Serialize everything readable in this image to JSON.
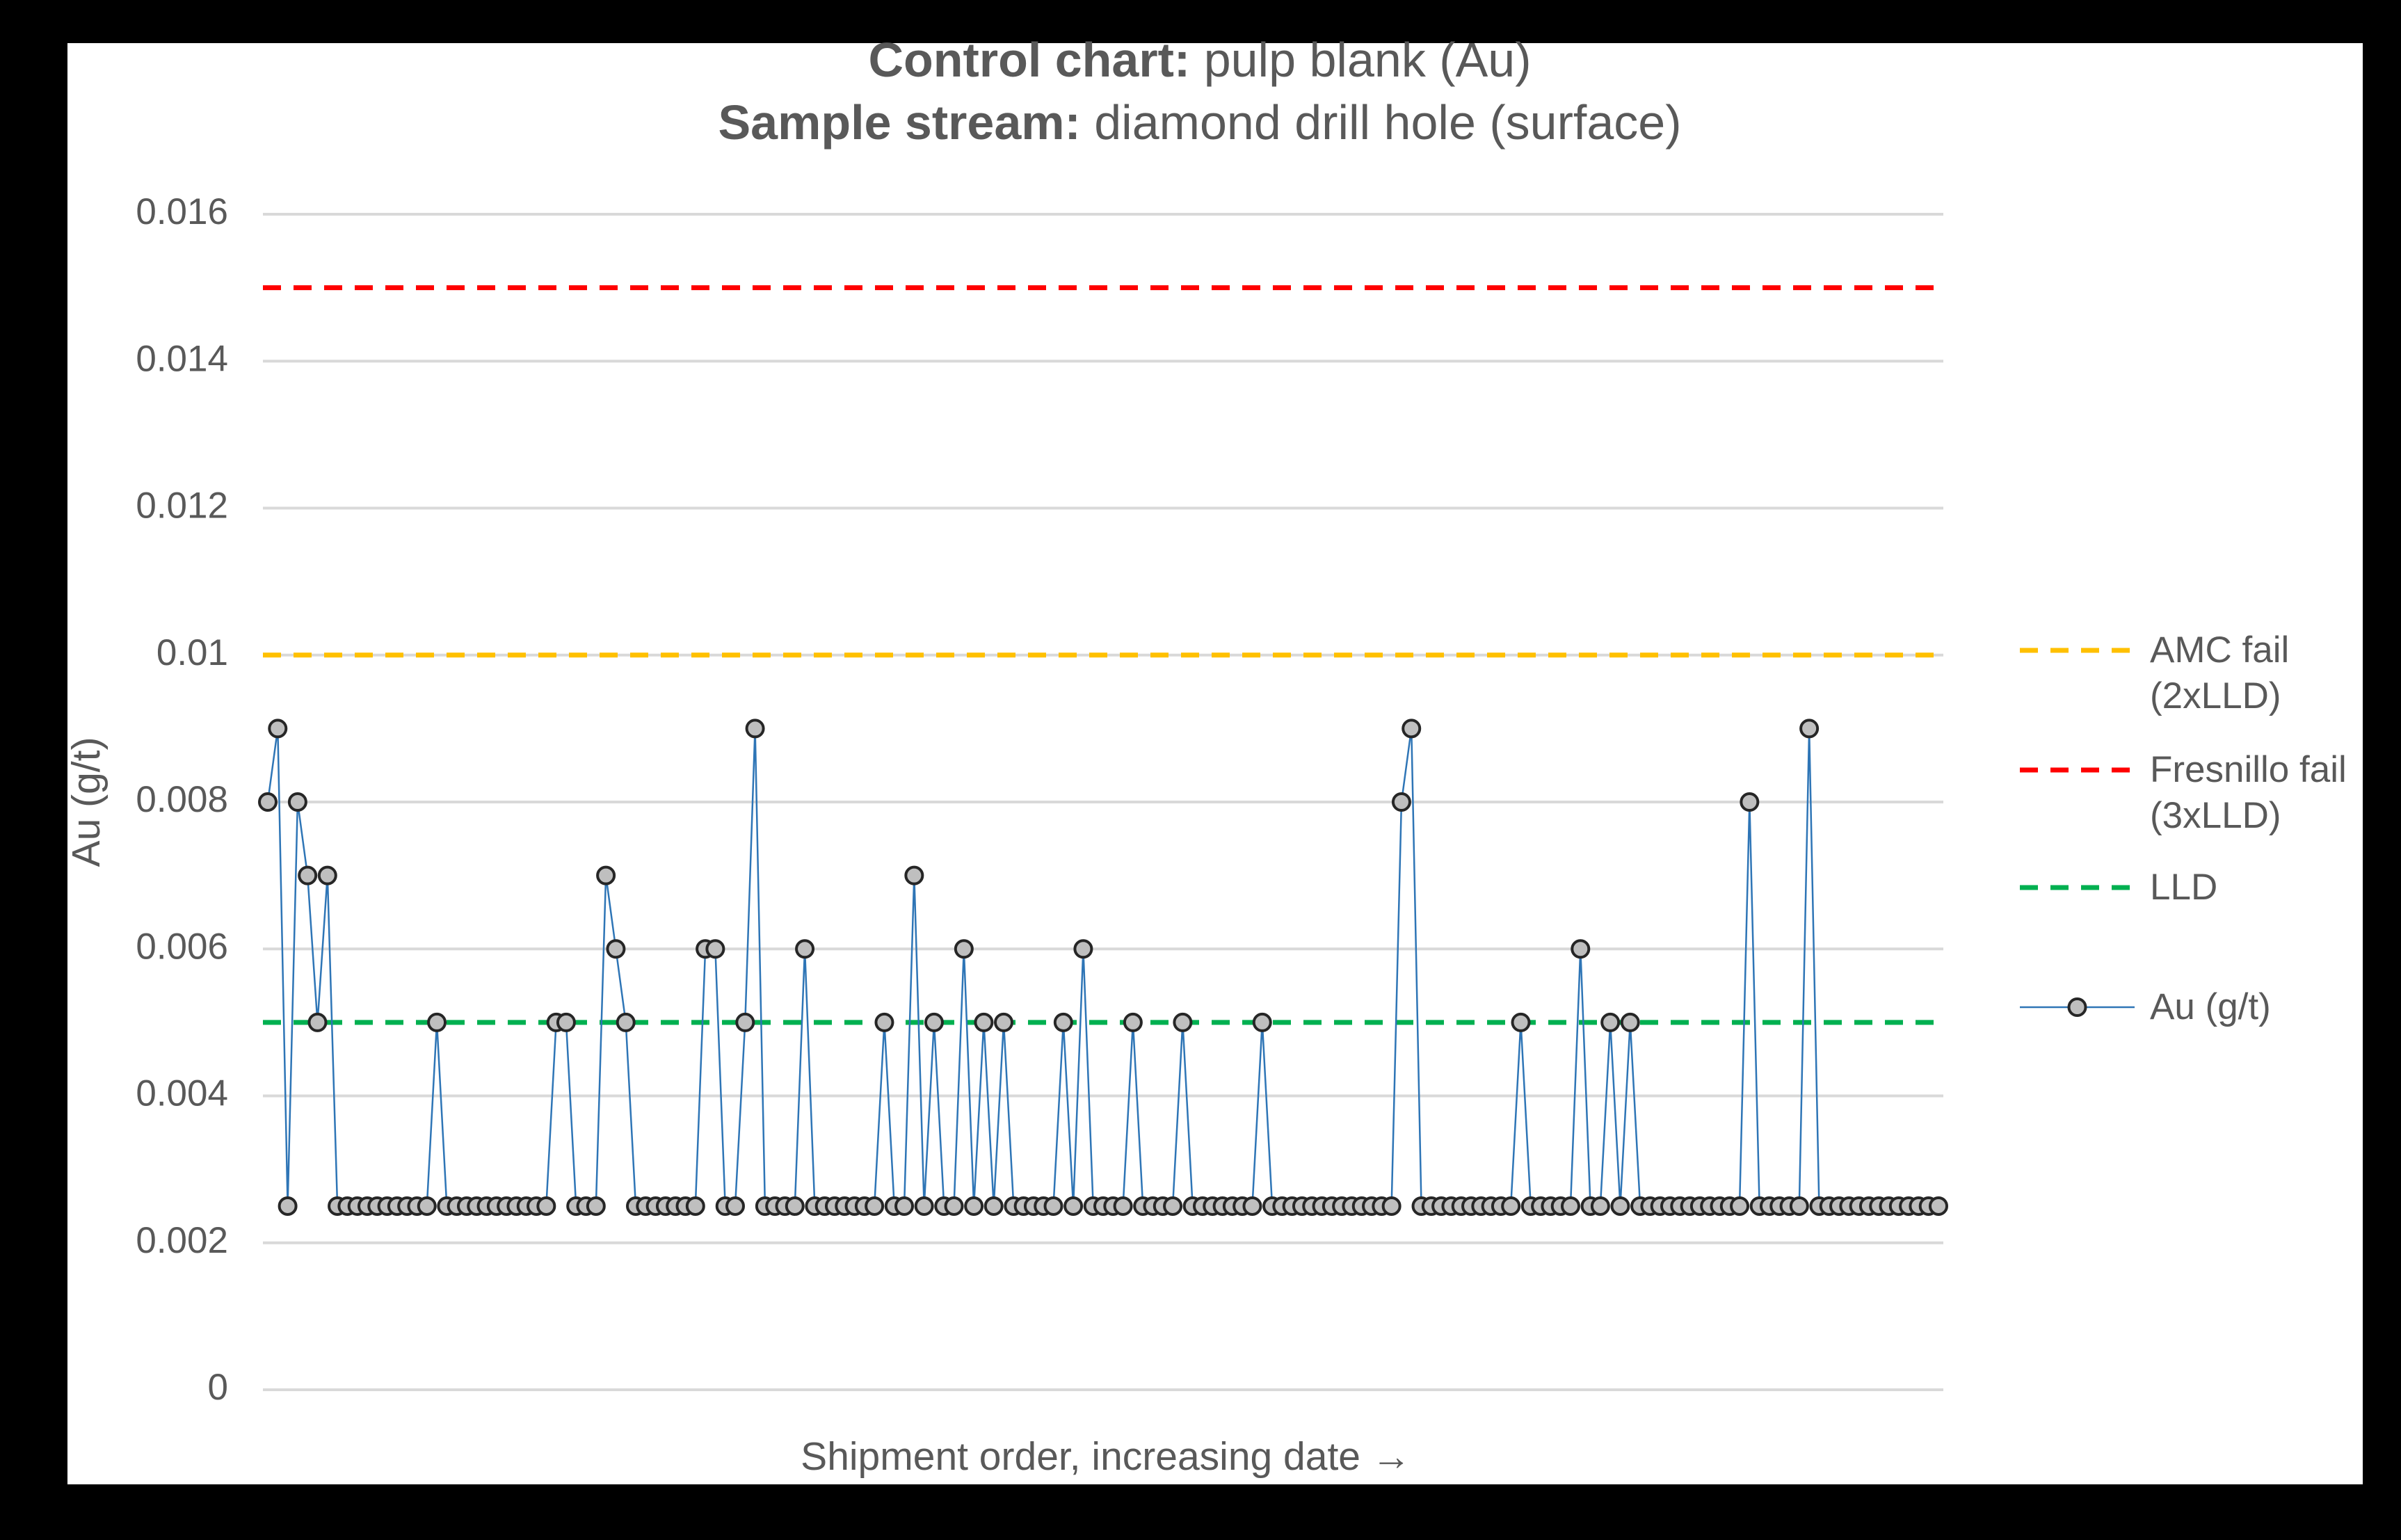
{
  "chart_data": {
    "type": "line",
    "title": {
      "label": "Control chart:",
      "text": "pulp blank (Au)"
    },
    "subtitle": {
      "label": "Sample stream:",
      "text": "diamond drill hole (surface)"
    },
    "x_label": "Shipment order, increasing date →",
    "y_label": "Au (g/t)",
    "ylim": [
      0,
      0.016
    ],
    "yticks": [
      0,
      0.002,
      0.004,
      0.006,
      0.008,
      0.01,
      0.012,
      0.014,
      0.016
    ],
    "grid": true,
    "legend": "right",
    "reference_lines": [
      {
        "name": "AMC fail (2xLLD)",
        "value": 0.01,
        "color": "#ffc000"
      },
      {
        "name": "Fresnillo fail (3xLLD)",
        "value": 0.015,
        "color": "#ff0000"
      },
      {
        "name": "LLD",
        "value": 0.005,
        "color": "#00b050"
      }
    ],
    "series": [
      {
        "name": "Au (g/t)",
        "color": "#2e75b6",
        "marker_color": "#bfbfbf",
        "values": [
          0.008,
          0.009,
          0.0025,
          0.008,
          0.007,
          0.005,
          0.007,
          0.0025,
          0.0025,
          0.0025,
          0.0025,
          0.0025,
          0.0025,
          0.0025,
          0.0025,
          0.0025,
          0.0025,
          0.005,
          0.0025,
          0.0025,
          0.0025,
          0.0025,
          0.0025,
          0.0025,
          0.0025,
          0.0025,
          0.0025,
          0.0025,
          0.0025,
          0.005,
          0.005,
          0.0025,
          0.0025,
          0.0025,
          0.007,
          0.006,
          0.005,
          0.0025,
          0.0025,
          0.0025,
          0.0025,
          0.0025,
          0.0025,
          0.0025,
          0.006,
          0.006,
          0.0025,
          0.0025,
          0.005,
          0.009,
          0.0025,
          0.0025,
          0.0025,
          0.0025,
          0.006,
          0.0025,
          0.0025,
          0.0025,
          0.0025,
          0.0025,
          0.0025,
          0.0025,
          0.005,
          0.0025,
          0.0025,
          0.007,
          0.0025,
          0.005,
          0.0025,
          0.0025,
          0.006,
          0.0025,
          0.005,
          0.0025,
          0.005,
          0.0025,
          0.0025,
          0.0025,
          0.0025,
          0.0025,
          0.005,
          0.0025,
          0.006,
          0.0025,
          0.0025,
          0.0025,
          0.0025,
          0.005,
          0.0025,
          0.0025,
          0.0025,
          0.0025,
          0.005,
          0.0025,
          0.0025,
          0.0025,
          0.0025,
          0.0025,
          0.0025,
          0.0025,
          0.005,
          0.0025,
          0.0025,
          0.0025,
          0.0025,
          0.0025,
          0.0025,
          0.0025,
          0.0025,
          0.0025,
          0.0025,
          0.0025,
          0.0025,
          0.0025,
          0.008,
          0.009,
          0.0025,
          0.0025,
          0.0025,
          0.0025,
          0.0025,
          0.0025,
          0.0025,
          0.0025,
          0.0025,
          0.0025,
          0.005,
          0.0025,
          0.0025,
          0.0025,
          0.0025,
          0.0025,
          0.006,
          0.0025,
          0.0025,
          0.005,
          0.0025,
          0.005,
          0.0025,
          0.0025,
          0.0025,
          0.0025,
          0.0025,
          0.0025,
          0.0025,
          0.0025,
          0.0025,
          0.0025,
          0.0025,
          0.008,
          0.0025,
          0.0025,
          0.0025,
          0.0025,
          0.0025,
          0.009,
          0.0025,
          0.0025,
          0.0025,
          0.0025,
          0.0025,
          0.0025,
          0.0025,
          0.0025,
          0.0025,
          0.0025,
          0.0025,
          0.0025,
          0.0025
        ]
      }
    ]
  }
}
